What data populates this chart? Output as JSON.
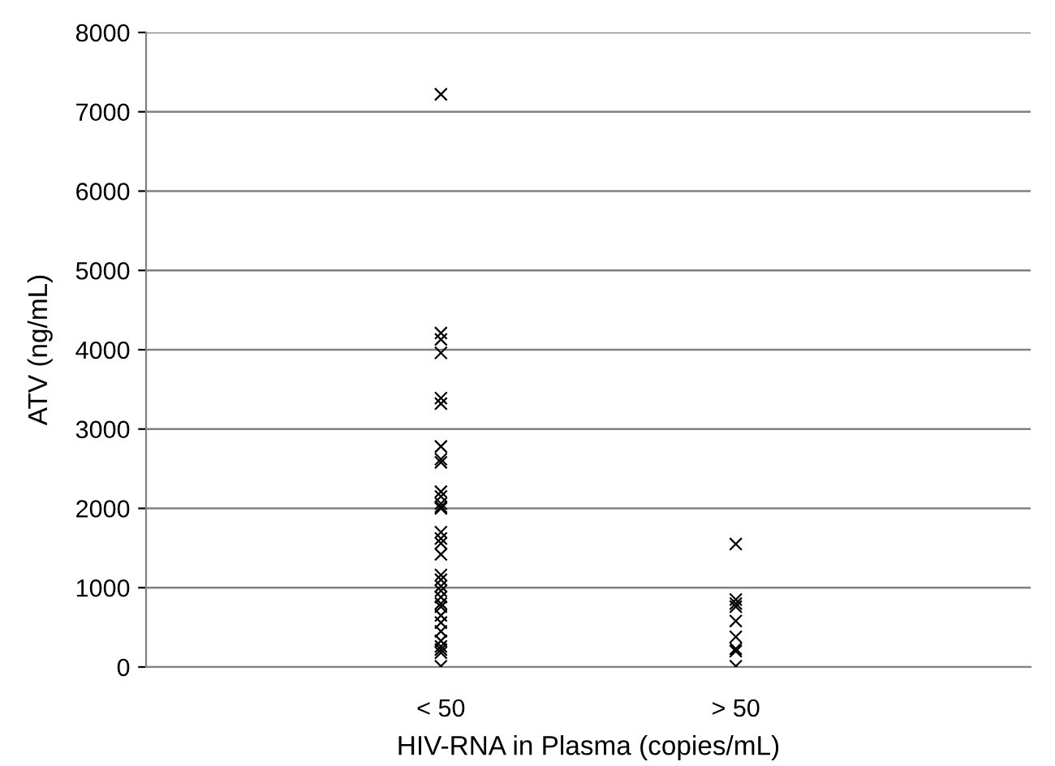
{
  "chart_data": {
    "type": "scatter",
    "xlabel": "HIV-RNA in Plasma (copies/mL)",
    "ylabel": "ATV (ng/mL)",
    "categories": [
      "< 50",
      "> 50"
    ],
    "series": [
      {
        "color": "#000000",
        "x": [
          "< 50",
          "< 50",
          "< 50",
          "< 50",
          "< 50",
          "< 50",
          "< 50",
          "< 50",
          "< 50",
          "< 50",
          "< 50",
          "< 50",
          "< 50",
          "< 50",
          "< 50",
          "< 50",
          "< 50",
          "< 50",
          "< 50",
          "< 50",
          "< 50",
          "< 50",
          "< 50",
          "< 50",
          "< 50",
          "< 50",
          "< 50",
          "< 50",
          "< 50",
          "< 50",
          "< 50",
          "< 50",
          "< 50"
        ],
        "values": [
          7220,
          4210,
          4130,
          3960,
          3390,
          3320,
          2780,
          2620,
          2580,
          2210,
          2150,
          2060,
          2020,
          2000,
          1700,
          1620,
          1560,
          1420,
          1160,
          1100,
          1020,
          960,
          880,
          800,
          760,
          650,
          560,
          450,
          330,
          260,
          220,
          180,
          10
        ]
      },
      {
        "color": "#000000",
        "x": [
          "> 50",
          "> 50",
          "> 50",
          "> 50",
          "> 50",
          "> 50",
          "> 50",
          "> 50",
          "> 50"
        ],
        "values": [
          1550,
          850,
          800,
          760,
          580,
          380,
          230,
          200,
          10
        ]
      }
    ],
    "ylim": [
      0,
      8000
    ],
    "yticks": [
      0,
      1000,
      2000,
      3000,
      4000,
      5000,
      6000,
      7000,
      8000
    ],
    "grid": "y",
    "marker": "cross",
    "legend": false
  }
}
